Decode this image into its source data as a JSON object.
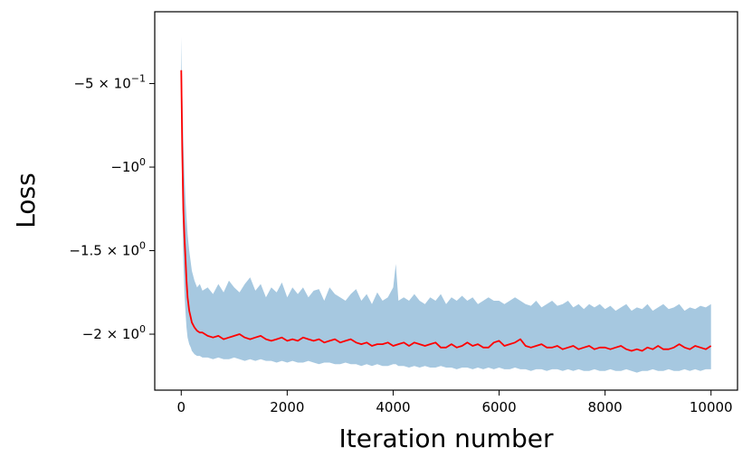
{
  "chart_data": {
    "type": "line",
    "title": "",
    "xlabel": "Iteration number",
    "ylabel": "Loss",
    "xlim": [
      -500,
      10500
    ],
    "ylim": [
      -2.335,
      -0.07
    ],
    "grid": false,
    "x_ticks": [
      {
        "value": 0,
        "label": "0"
      },
      {
        "value": 2000,
        "label": "2000"
      },
      {
        "value": 4000,
        "label": "4000"
      },
      {
        "value": 6000,
        "label": "6000"
      },
      {
        "value": 8000,
        "label": "8000"
      },
      {
        "value": 10000,
        "label": "10000"
      }
    ],
    "y_ticks": [
      {
        "value": -0.5,
        "base": "−5 × 10",
        "exp": "−1"
      },
      {
        "value": -1.0,
        "base": "−10",
        "exp": "0"
      },
      {
        "value": -1.5,
        "base": "−1.5 × 10",
        "exp": "0"
      },
      {
        "value": -2.0,
        "base": "−2 × 10",
        "exp": "0"
      }
    ],
    "series": [
      {
        "kind": "mean-line",
        "color": "#ff0000",
        "x": [
          0,
          20,
          40,
          60,
          80,
          100,
          120,
          150,
          180,
          200,
          250,
          300,
          350,
          400,
          500,
          600,
          700,
          800,
          900,
          1000,
          1100,
          1200,
          1300,
          1400,
          1500,
          1600,
          1700,
          1800,
          1900,
          2000,
          2100,
          2200,
          2300,
          2400,
          2500,
          2600,
          2700,
          2800,
          2900,
          3000,
          3100,
          3200,
          3300,
          3400,
          3500,
          3600,
          3700,
          3800,
          3900,
          4000,
          4100,
          4200,
          4300,
          4400,
          4500,
          4600,
          4700,
          4800,
          4900,
          5000,
          5100,
          5200,
          5300,
          5400,
          5500,
          5600,
          5700,
          5800,
          5900,
          6000,
          6100,
          6200,
          6300,
          6400,
          6500,
          6600,
          6700,
          6800,
          6900,
          7000,
          7100,
          7200,
          7300,
          7400,
          7500,
          7600,
          7700,
          7800,
          7900,
          8000,
          8100,
          8200,
          8300,
          8400,
          8500,
          8600,
          8700,
          8800,
          8900,
          9000,
          9100,
          9200,
          9300,
          9400,
          9500,
          9600,
          9700,
          9800,
          9900,
          10000
        ],
        "y": [
          -0.42,
          -0.9,
          -1.25,
          -1.42,
          -1.55,
          -1.68,
          -1.78,
          -1.86,
          -1.9,
          -1.93,
          -1.96,
          -1.98,
          -1.99,
          -1.99,
          -2.01,
          -2.02,
          -2.01,
          -2.03,
          -2.02,
          -2.01,
          -2.0,
          -2.02,
          -2.03,
          -2.02,
          -2.01,
          -2.03,
          -2.04,
          -2.03,
          -2.02,
          -2.04,
          -2.03,
          -2.04,
          -2.02,
          -2.03,
          -2.04,
          -2.03,
          -2.05,
          -2.04,
          -2.03,
          -2.05,
          -2.04,
          -2.03,
          -2.05,
          -2.06,
          -2.05,
          -2.07,
          -2.06,
          -2.06,
          -2.05,
          -2.07,
          -2.06,
          -2.05,
          -2.07,
          -2.05,
          -2.06,
          -2.07,
          -2.06,
          -2.05,
          -2.08,
          -2.08,
          -2.06,
          -2.08,
          -2.07,
          -2.05,
          -2.07,
          -2.06,
          -2.08,
          -2.08,
          -2.05,
          -2.04,
          -2.07,
          -2.06,
          -2.05,
          -2.03,
          -2.07,
          -2.08,
          -2.07,
          -2.06,
          -2.08,
          -2.08,
          -2.07,
          -2.09,
          -2.08,
          -2.07,
          -2.09,
          -2.08,
          -2.07,
          -2.09,
          -2.08,
          -2.08,
          -2.09,
          -2.08,
          -2.07,
          -2.09,
          -2.1,
          -2.09,
          -2.1,
          -2.08,
          -2.09,
          -2.07,
          -2.09,
          -2.09,
          -2.08,
          -2.06,
          -2.08,
          -2.09,
          -2.07,
          -2.08,
          -2.09,
          -2.07
        ]
      },
      {
        "kind": "band",
        "color": "#a6c8e0",
        "x": [
          0,
          20,
          40,
          60,
          80,
          100,
          120,
          150,
          180,
          200,
          250,
          300,
          350,
          400,
          500,
          600,
          700,
          800,
          900,
          1000,
          1100,
          1200,
          1300,
          1400,
          1500,
          1600,
          1700,
          1800,
          1900,
          2000,
          2100,
          2200,
          2300,
          2400,
          2500,
          2600,
          2700,
          2800,
          2900,
          3000,
          3100,
          3200,
          3300,
          3400,
          3500,
          3600,
          3700,
          3800,
          3900,
          4000,
          4050,
          4100,
          4200,
          4300,
          4400,
          4500,
          4600,
          4700,
          4800,
          4900,
          5000,
          5100,
          5200,
          5300,
          5400,
          5500,
          5600,
          5700,
          5800,
          5900,
          6000,
          6100,
          6200,
          6300,
          6400,
          6500,
          6600,
          6700,
          6800,
          6900,
          7000,
          7100,
          7200,
          7300,
          7400,
          7500,
          7600,
          7700,
          7800,
          7900,
          8000,
          8100,
          8200,
          8300,
          8400,
          8500,
          8600,
          8700,
          8800,
          8900,
          9000,
          9100,
          9200,
          9300,
          9400,
          9500,
          9600,
          9700,
          9800,
          9900,
          10000
        ],
        "upper": [
          -0.22,
          -0.55,
          -0.85,
          -1.05,
          -1.2,
          -1.3,
          -1.4,
          -1.5,
          -1.57,
          -1.62,
          -1.68,
          -1.72,
          -1.7,
          -1.74,
          -1.72,
          -1.76,
          -1.7,
          -1.75,
          -1.68,
          -1.72,
          -1.75,
          -1.7,
          -1.66,
          -1.74,
          -1.7,
          -1.78,
          -1.72,
          -1.75,
          -1.69,
          -1.78,
          -1.72,
          -1.76,
          -1.72,
          -1.78,
          -1.74,
          -1.73,
          -1.8,
          -1.72,
          -1.76,
          -1.78,
          -1.8,
          -1.76,
          -1.73,
          -1.8,
          -1.76,
          -1.82,
          -1.75,
          -1.8,
          -1.78,
          -1.72,
          -1.58,
          -1.8,
          -1.78,
          -1.8,
          -1.76,
          -1.8,
          -1.82,
          -1.78,
          -1.8,
          -1.76,
          -1.82,
          -1.78,
          -1.8,
          -1.77,
          -1.8,
          -1.78,
          -1.82,
          -1.8,
          -1.78,
          -1.8,
          -1.8,
          -1.82,
          -1.8,
          -1.78,
          -1.8,
          -1.82,
          -1.83,
          -1.8,
          -1.84,
          -1.82,
          -1.8,
          -1.83,
          -1.82,
          -1.8,
          -1.84,
          -1.82,
          -1.85,
          -1.82,
          -1.84,
          -1.82,
          -1.85,
          -1.83,
          -1.86,
          -1.84,
          -1.82,
          -1.86,
          -1.84,
          -1.85,
          -1.82,
          -1.86,
          -1.84,
          -1.82,
          -1.85,
          -1.84,
          -1.82,
          -1.86,
          -1.84,
          -1.85,
          -1.83,
          -1.84,
          -1.82
        ],
        "lower": [
          -0.6,
          -1.2,
          -1.55,
          -1.75,
          -1.87,
          -1.96,
          -2.02,
          -2.06,
          -2.08,
          -2.1,
          -2.12,
          -2.13,
          -2.13,
          -2.14,
          -2.14,
          -2.15,
          -2.14,
          -2.15,
          -2.15,
          -2.14,
          -2.15,
          -2.16,
          -2.15,
          -2.16,
          -2.15,
          -2.16,
          -2.16,
          -2.17,
          -2.16,
          -2.17,
          -2.16,
          -2.17,
          -2.17,
          -2.16,
          -2.17,
          -2.18,
          -2.17,
          -2.17,
          -2.18,
          -2.18,
          -2.17,
          -2.18,
          -2.18,
          -2.19,
          -2.18,
          -2.19,
          -2.18,
          -2.19,
          -2.19,
          -2.18,
          -2.18,
          -2.19,
          -2.19,
          -2.2,
          -2.19,
          -2.2,
          -2.19,
          -2.2,
          -2.2,
          -2.19,
          -2.2,
          -2.2,
          -2.21,
          -2.2,
          -2.2,
          -2.21,
          -2.2,
          -2.21,
          -2.2,
          -2.21,
          -2.2,
          -2.21,
          -2.21,
          -2.2,
          -2.21,
          -2.21,
          -2.22,
          -2.21,
          -2.21,
          -2.22,
          -2.21,
          -2.21,
          -2.22,
          -2.21,
          -2.22,
          -2.21,
          -2.22,
          -2.22,
          -2.21,
          -2.22,
          -2.22,
          -2.21,
          -2.22,
          -2.22,
          -2.21,
          -2.22,
          -2.23,
          -2.22,
          -2.22,
          -2.21,
          -2.22,
          -2.22,
          -2.21,
          -2.22,
          -2.22,
          -2.21,
          -2.22,
          -2.21,
          -2.22,
          -2.21,
          -2.21
        ]
      }
    ]
  }
}
